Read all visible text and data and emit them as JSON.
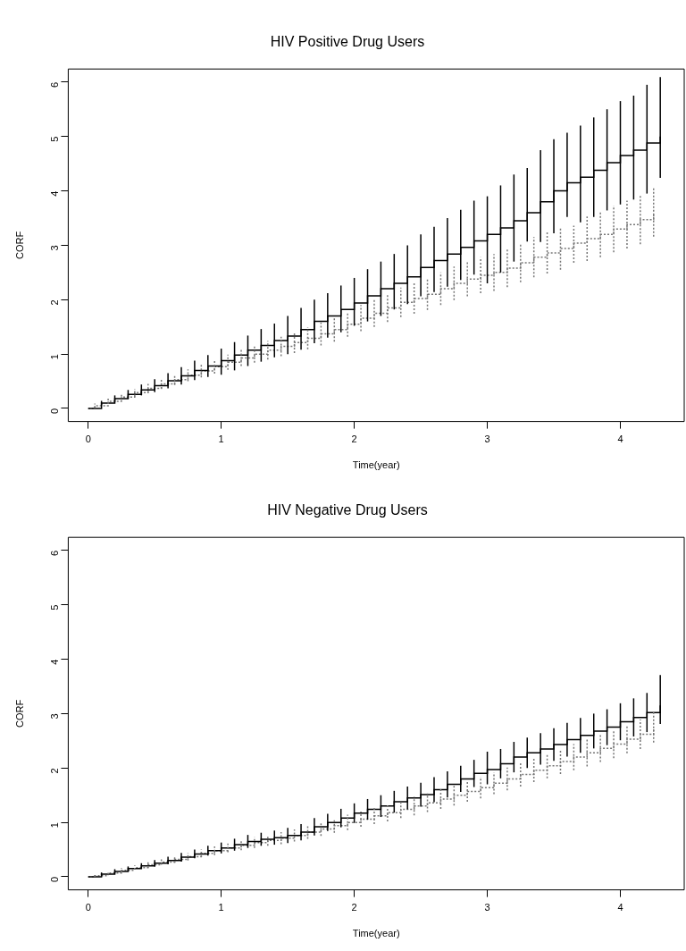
{
  "chart_data": [
    {
      "type": "step",
      "title": "HIV Positive Drug Users",
      "xlabel": "Time(year)",
      "ylabel": "CORF",
      "xlim": [
        -0.15,
        4.48
      ],
      "ylim": [
        -0.24,
        6.24
      ],
      "xticks": [
        0,
        1,
        2,
        3,
        4
      ],
      "yticks": [
        0,
        1,
        2,
        3,
        4,
        5,
        6
      ],
      "series": [
        {
          "type": "step",
          "color": "#000000",
          "line_style": "solid",
          "x": [
            0,
            0.1,
            0.2,
            0.3,
            0.4,
            0.5,
            0.6,
            0.7,
            0.8,
            0.9,
            1.0,
            1.1,
            1.2,
            1.3,
            1.4,
            1.5,
            1.6,
            1.7,
            1.8,
            1.9,
            2.0,
            2.1,
            2.2,
            2.3,
            2.4,
            2.5,
            2.6,
            2.7,
            2.8,
            2.9,
            3.0,
            3.1,
            3.2,
            3.3,
            3.4,
            3.5,
            3.6,
            3.7,
            3.8,
            3.9,
            4.0,
            4.1,
            4.2,
            4.3
          ],
          "values": [
            0,
            0.1,
            0.18,
            0.26,
            0.34,
            0.42,
            0.51,
            0.6,
            0.7,
            0.78,
            0.88,
            0.98,
            1.07,
            1.16,
            1.25,
            1.33,
            1.45,
            1.6,
            1.7,
            1.82,
            1.94,
            2.07,
            2.2,
            2.3,
            2.42,
            2.59,
            2.72,
            2.84,
            2.96,
            3.08,
            3.2,
            3.32,
            3.45,
            3.6,
            3.8,
            4.0,
            4.15,
            4.25,
            4.38,
            4.52,
            4.65,
            4.75,
            4.88,
            5.0
          ],
          "errors": [
            null,
            [
              0.06,
              0.14
            ],
            [
              0.12,
              0.24
            ],
            [
              0.18,
              0.34
            ],
            [
              0.24,
              0.44
            ],
            [
              0.3,
              0.54
            ],
            [
              0.37,
              0.65
            ],
            [
              0.44,
              0.76
            ],
            [
              0.52,
              0.88
            ],
            [
              0.58,
              0.98
            ],
            [
              0.62,
              1.1
            ],
            [
              0.7,
              1.22
            ],
            [
              0.78,
              1.34
            ],
            [
              0.86,
              1.46
            ],
            [
              0.94,
              1.56
            ],
            [
              1.0,
              1.7
            ],
            [
              1.08,
              1.85
            ],
            [
              1.2,
              2.0
            ],
            [
              1.3,
              2.12
            ],
            [
              1.4,
              2.26
            ],
            [
              1.52,
              2.4
            ],
            [
              1.6,
              2.56
            ],
            [
              1.7,
              2.7
            ],
            [
              1.82,
              2.84
            ],
            [
              1.92,
              3.0
            ],
            [
              2.06,
              3.2
            ],
            [
              2.14,
              3.34
            ],
            [
              2.24,
              3.5
            ],
            [
              2.36,
              3.65
            ],
            [
              2.46,
              3.82
            ],
            [
              2.3,
              3.9
            ],
            [
              2.5,
              4.1
            ],
            [
              2.7,
              4.3
            ],
            [
              3.07,
              4.42
            ],
            [
              3.06,
              4.75
            ],
            [
              3.22,
              4.95
            ],
            [
              3.52,
              5.07
            ],
            [
              3.42,
              5.2
            ],
            [
              3.52,
              5.35
            ],
            [
              3.64,
              5.5
            ],
            [
              3.75,
              5.65
            ],
            [
              3.84,
              5.75
            ],
            [
              3.95,
              5.95
            ],
            [
              4.24,
              6.09
            ]
          ]
        },
        {
          "type": "step",
          "color": "#777777",
          "line_style": "dotted",
          "x": [
            0,
            0.05,
            0.15,
            0.25,
            0.35,
            0.45,
            0.55,
            0.65,
            0.75,
            0.85,
            0.95,
            1.05,
            1.15,
            1.25,
            1.35,
            1.45,
            1.55,
            1.65,
            1.75,
            1.85,
            1.95,
            2.05,
            2.15,
            2.25,
            2.35,
            2.45,
            2.55,
            2.65,
            2.75,
            2.85,
            2.95,
            3.05,
            3.15,
            3.25,
            3.35,
            3.45,
            3.55,
            3.65,
            3.75,
            3.85,
            3.95,
            4.05,
            4.15,
            4.25
          ],
          "values": [
            0,
            0.05,
            0.13,
            0.21,
            0.29,
            0.37,
            0.45,
            0.53,
            0.61,
            0.69,
            0.77,
            0.85,
            0.93,
            1.0,
            1.07,
            1.14,
            1.21,
            1.29,
            1.37,
            1.45,
            1.55,
            1.66,
            1.75,
            1.85,
            1.95,
            2.02,
            2.1,
            2.2,
            2.3,
            2.38,
            2.45,
            2.5,
            2.58,
            2.68,
            2.78,
            2.86,
            2.94,
            3.04,
            3.12,
            3.2,
            3.3,
            3.38,
            3.47,
            3.6
          ],
          "errors": [
            null,
            [
              0.01,
              0.09
            ],
            [
              0.08,
              0.18
            ],
            [
              0.15,
              0.27
            ],
            [
              0.22,
              0.36
            ],
            [
              0.29,
              0.45
            ],
            [
              0.36,
              0.54
            ],
            [
              0.43,
              0.63
            ],
            [
              0.5,
              0.72
            ],
            [
              0.57,
              0.81
            ],
            [
              0.64,
              0.9
            ],
            [
              0.71,
              0.99
            ],
            [
              0.78,
              1.08
            ],
            [
              0.84,
              1.16
            ],
            [
              0.9,
              1.24
            ],
            [
              0.96,
              1.32
            ],
            [
              1.02,
              1.4
            ],
            [
              1.09,
              1.49
            ],
            [
              1.16,
              1.58
            ],
            [
              1.23,
              1.67
            ],
            [
              1.32,
              1.78
            ],
            [
              1.42,
              1.9
            ],
            [
              1.5,
              2.0
            ],
            [
              1.59,
              2.11
            ],
            [
              1.68,
              2.22
            ],
            [
              1.74,
              2.3
            ],
            [
              1.81,
              2.39
            ],
            [
              1.9,
              2.5
            ],
            [
              1.99,
              2.61
            ],
            [
              2.06,
              2.7
            ],
            [
              2.12,
              2.78
            ],
            [
              2.16,
              2.84
            ],
            [
              2.23,
              2.93
            ],
            [
              2.32,
              3.04
            ],
            [
              2.41,
              3.15
            ],
            [
              2.48,
              3.24
            ],
            [
              2.55,
              3.33
            ],
            [
              2.68,
              3.36
            ],
            [
              2.71,
              3.53
            ],
            [
              2.78,
              3.62
            ],
            [
              2.87,
              3.73
            ],
            [
              2.94,
              3.82
            ],
            [
              3.02,
              3.92
            ],
            [
              3.16,
              4.08
            ]
          ]
        }
      ]
    },
    {
      "type": "step",
      "title": "HIV Negative Drug Users",
      "xlabel": "Time(year)",
      "ylabel": "CORF",
      "xlim": [
        -0.15,
        4.48
      ],
      "ylim": [
        -0.24,
        6.24
      ],
      "xticks": [
        0,
        1,
        2,
        3,
        4
      ],
      "yticks": [
        0,
        1,
        2,
        3,
        4,
        5,
        6
      ],
      "series": [
        {
          "type": "step",
          "color": "#000000",
          "line_style": "solid",
          "x": [
            0,
            0.1,
            0.2,
            0.3,
            0.4,
            0.5,
            0.6,
            0.7,
            0.8,
            0.9,
            1.0,
            1.1,
            1.2,
            1.3,
            1.4,
            1.5,
            1.6,
            1.7,
            1.8,
            1.9,
            2.0,
            2.1,
            2.2,
            2.3,
            2.4,
            2.5,
            2.6,
            2.7,
            2.8,
            2.9,
            3.0,
            3.1,
            3.2,
            3.3,
            3.4,
            3.5,
            3.6,
            3.7,
            3.8,
            3.9,
            4.0,
            4.1,
            4.2,
            4.3
          ],
          "values": [
            0,
            0.05,
            0.1,
            0.15,
            0.2,
            0.25,
            0.3,
            0.36,
            0.42,
            0.48,
            0.53,
            0.59,
            0.65,
            0.69,
            0.72,
            0.76,
            0.82,
            0.92,
            1.0,
            1.08,
            1.17,
            1.24,
            1.3,
            1.38,
            1.45,
            1.51,
            1.6,
            1.7,
            1.8,
            1.9,
            1.97,
            2.08,
            2.2,
            2.28,
            2.35,
            2.43,
            2.52,
            2.6,
            2.68,
            2.75,
            2.85,
            2.93,
            3.02,
            3.15
          ],
          "errors": [
            null,
            [
              0.02,
              0.08
            ],
            [
              0.06,
              0.14
            ],
            [
              0.11,
              0.19
            ],
            [
              0.15,
              0.25
            ],
            [
              0.19,
              0.31
            ],
            [
              0.23,
              0.37
            ],
            [
              0.28,
              0.44
            ],
            [
              0.34,
              0.5
            ],
            [
              0.39,
              0.57
            ],
            [
              0.43,
              0.63
            ],
            [
              0.48,
              0.7
            ],
            [
              0.53,
              0.77
            ],
            [
              0.57,
              0.81
            ],
            [
              0.59,
              0.85
            ],
            [
              0.62,
              0.9
            ],
            [
              0.67,
              0.97
            ],
            [
              0.76,
              1.08
            ],
            [
              0.84,
              1.16
            ],
            [
              0.91,
              1.25
            ],
            [
              0.99,
              1.35
            ],
            [
              1.05,
              1.43
            ],
            [
              1.1,
              1.5
            ],
            [
              1.18,
              1.58
            ],
            [
              1.24,
              1.66
            ],
            [
              1.29,
              1.73
            ],
            [
              1.37,
              1.83
            ],
            [
              1.46,
              1.94
            ],
            [
              1.56,
              2.04
            ],
            [
              1.65,
              2.15
            ],
            [
              1.7,
              2.3
            ],
            [
              1.81,
              2.35
            ],
            [
              1.92,
              2.48
            ],
            [
              2.0,
              2.56
            ],
            [
              2.06,
              2.64
            ],
            [
              2.13,
              2.73
            ],
            [
              2.21,
              2.83
            ],
            [
              2.28,
              2.92
            ],
            [
              2.36,
              3.0
            ],
            [
              2.42,
              3.08
            ],
            [
              2.51,
              3.19
            ],
            [
              2.58,
              3.28
            ],
            [
              2.66,
              3.38
            ],
            [
              2.81,
              3.71
            ]
          ]
        },
        {
          "type": "step",
          "color": "#777777",
          "line_style": "dotted",
          "x": [
            0,
            0.05,
            0.15,
            0.25,
            0.35,
            0.45,
            0.55,
            0.65,
            0.75,
            0.85,
            0.95,
            1.05,
            1.15,
            1.25,
            1.35,
            1.45,
            1.55,
            1.65,
            1.75,
            1.85,
            1.95,
            2.05,
            2.15,
            2.25,
            2.35,
            2.45,
            2.55,
            2.65,
            2.75,
            2.85,
            2.95,
            3.05,
            3.15,
            3.25,
            3.35,
            3.45,
            3.55,
            3.65,
            3.75,
            3.85,
            3.95,
            4.05,
            4.15,
            4.25
          ],
          "values": [
            0,
            0.02,
            0.07,
            0.12,
            0.17,
            0.22,
            0.27,
            0.32,
            0.37,
            0.43,
            0.48,
            0.53,
            0.58,
            0.63,
            0.67,
            0.71,
            0.76,
            0.82,
            0.88,
            0.94,
            1.0,
            1.06,
            1.12,
            1.18,
            1.24,
            1.3,
            1.36,
            1.43,
            1.5,
            1.57,
            1.64,
            1.72,
            1.8,
            1.88,
            1.96,
            2.04,
            2.12,
            2.2,
            2.28,
            2.36,
            2.44,
            2.53,
            2.62,
            2.73
          ],
          "errors": [
            null,
            [
              0.0,
              0.04
            ],
            [
              0.04,
              0.1
            ],
            [
              0.08,
              0.16
            ],
            [
              0.13,
              0.21
            ],
            [
              0.17,
              0.27
            ],
            [
              0.22,
              0.32
            ],
            [
              0.26,
              0.38
            ],
            [
              0.3,
              0.44
            ],
            [
              0.36,
              0.5
            ],
            [
              0.4,
              0.56
            ],
            [
              0.45,
              0.61
            ],
            [
              0.49,
              0.67
            ],
            [
              0.53,
              0.73
            ],
            [
              0.57,
              0.77
            ],
            [
              0.6,
              0.82
            ],
            [
              0.65,
              0.87
            ],
            [
              0.7,
              0.94
            ],
            [
              0.75,
              1.01
            ],
            [
              0.81,
              1.07
            ],
            [
              0.86,
              1.14
            ],
            [
              0.92,
              1.2
            ],
            [
              0.97,
              1.27
            ],
            [
              1.02,
              1.34
            ],
            [
              1.08,
              1.4
            ],
            [
              1.13,
              1.47
            ],
            [
              1.19,
              1.53
            ],
            [
              1.25,
              1.61
            ],
            [
              1.31,
              1.69
            ],
            [
              1.38,
              1.76
            ],
            [
              1.44,
              1.84
            ],
            [
              1.52,
              1.92
            ],
            [
              1.59,
              2.01
            ],
            [
              1.66,
              2.1
            ],
            [
              1.74,
              2.18
            ],
            [
              1.81,
              2.27
            ],
            [
              1.89,
              2.35
            ],
            [
              1.96,
              2.44
            ],
            [
              2.03,
              2.53
            ],
            [
              2.11,
              2.61
            ],
            [
              2.18,
              2.7
            ],
            [
              2.27,
              2.79
            ],
            [
              2.35,
              2.89
            ],
            [
              2.47,
              3.04
            ]
          ]
        }
      ]
    }
  ]
}
